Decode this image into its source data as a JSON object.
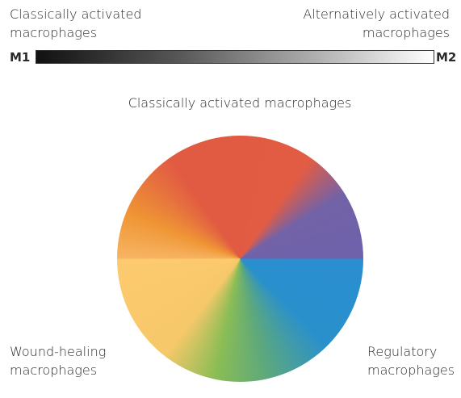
{
  "spectrum": {
    "left_label": [
      "Classically activated",
      "macrophages"
    ],
    "right_label": [
      "Alternatively activated",
      "macrophages"
    ],
    "left_end": "M1",
    "right_end": "M2"
  },
  "wheel": {
    "title": "Classically activated macrophages",
    "bottom_left_label": [
      "Wound-healing",
      "macrophages"
    ],
    "bottom_right_label": [
      "Regulatory",
      "macrophages"
    ]
  }
}
